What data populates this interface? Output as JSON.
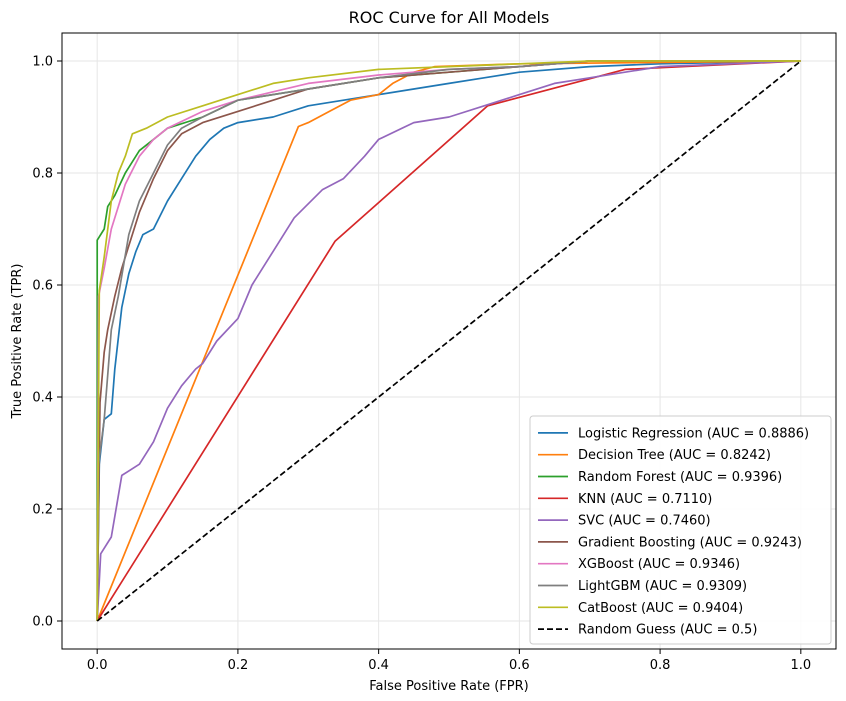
{
  "chart_data": {
    "type": "line",
    "title": "ROC Curve for All Models",
    "xlabel": "False Positive Rate (FPR)",
    "ylabel": "True Positive Rate (TPR)",
    "xlim": [
      -0.05,
      1.05
    ],
    "ylim": [
      -0.05,
      1.05
    ],
    "xticks": [
      "0.0",
      "0.2",
      "0.4",
      "0.6",
      "0.8",
      "1.0"
    ],
    "yticks": [
      "0.0",
      "0.2",
      "0.4",
      "0.6",
      "0.8",
      "1.0"
    ],
    "grid": true,
    "legend_position": "lower-right",
    "series": [
      {
        "name": "Logistic Regression (AUC = 0.8886)",
        "color": "#1f77b4",
        "dash": false,
        "points": [
          [
            0,
            0
          ],
          [
            0.003,
            0.28
          ],
          [
            0.01,
            0.36
          ],
          [
            0.02,
            0.37
          ],
          [
            0.025,
            0.45
          ],
          [
            0.035,
            0.56
          ],
          [
            0.045,
            0.62
          ],
          [
            0.055,
            0.66
          ],
          [
            0.065,
            0.69
          ],
          [
            0.08,
            0.7
          ],
          [
            0.1,
            0.75
          ],
          [
            0.12,
            0.79
          ],
          [
            0.14,
            0.83
          ],
          [
            0.16,
            0.86
          ],
          [
            0.18,
            0.88
          ],
          [
            0.2,
            0.89
          ],
          [
            0.25,
            0.9
          ],
          [
            0.3,
            0.92
          ],
          [
            0.35,
            0.93
          ],
          [
            0.4,
            0.94
          ],
          [
            0.45,
            0.95
          ],
          [
            0.5,
            0.96
          ],
          [
            0.55,
            0.97
          ],
          [
            0.6,
            0.98
          ],
          [
            0.7,
            0.99
          ],
          [
            0.8,
            0.995
          ],
          [
            1,
            1
          ]
        ]
      },
      {
        "name": "Decision Tree (AUC = 0.8242)",
        "color": "#ff7f0e",
        "dash": false,
        "points": [
          [
            0,
            0
          ],
          [
            0.286,
            0.883
          ],
          [
            0.3,
            0.89
          ],
          [
            0.33,
            0.91
          ],
          [
            0.36,
            0.93
          ],
          [
            0.4,
            0.94
          ],
          [
            0.42,
            0.96
          ],
          [
            0.45,
            0.98
          ],
          [
            0.48,
            0.99
          ],
          [
            0.6,
            0.995
          ],
          [
            1,
            1
          ]
        ]
      },
      {
        "name": "Random Forest (AUC = 0.9396)",
        "color": "#2ca02c",
        "dash": false,
        "points": [
          [
            0,
            0
          ],
          [
            0,
            0.6
          ],
          [
            0,
            0.68
          ],
          [
            0.01,
            0.7
          ],
          [
            0.015,
            0.74
          ],
          [
            0.025,
            0.76
          ],
          [
            0.04,
            0.8
          ],
          [
            0.06,
            0.84
          ],
          [
            0.08,
            0.86
          ],
          [
            0.1,
            0.88
          ],
          [
            0.15,
            0.9
          ],
          [
            0.2,
            0.93
          ],
          [
            0.3,
            0.95
          ],
          [
            0.4,
            0.97
          ],
          [
            0.5,
            0.98
          ],
          [
            0.6,
            0.99
          ],
          [
            0.7,
            1.0
          ],
          [
            1,
            1
          ]
        ]
      },
      {
        "name": "KNN (AUC = 0.7110)",
        "color": "#d62728",
        "dash": false,
        "points": [
          [
            0,
            0
          ],
          [
            0.338,
            0.678
          ],
          [
            0.555,
            0.92
          ],
          [
            0.75,
            0.985
          ],
          [
            1,
            1
          ]
        ]
      },
      {
        "name": "SVC (AUC = 0.7460)",
        "color": "#9467bd",
        "dash": false,
        "points": [
          [
            0,
            0
          ],
          [
            0.005,
            0.12
          ],
          [
            0.02,
            0.15
          ],
          [
            0.035,
            0.26
          ],
          [
            0.06,
            0.28
          ],
          [
            0.08,
            0.32
          ],
          [
            0.1,
            0.38
          ],
          [
            0.12,
            0.42
          ],
          [
            0.14,
            0.45
          ],
          [
            0.15,
            0.46
          ],
          [
            0.17,
            0.5
          ],
          [
            0.2,
            0.54
          ],
          [
            0.22,
            0.6
          ],
          [
            0.25,
            0.66
          ],
          [
            0.28,
            0.72
          ],
          [
            0.32,
            0.77
          ],
          [
            0.35,
            0.79
          ],
          [
            0.38,
            0.83
          ],
          [
            0.4,
            0.86
          ],
          [
            0.45,
            0.89
          ],
          [
            0.5,
            0.9
          ],
          [
            0.55,
            0.92
          ],
          [
            0.6,
            0.94
          ],
          [
            0.65,
            0.96
          ],
          [
            0.7,
            0.97
          ],
          [
            0.75,
            0.98
          ],
          [
            0.8,
            0.99
          ],
          [
            1,
            1
          ]
        ]
      },
      {
        "name": "Gradient Boosting (AUC = 0.9243)",
        "color": "#8c564b",
        "dash": false,
        "points": [
          [
            0,
            0
          ],
          [
            0.004,
            0.39
          ],
          [
            0.01,
            0.48
          ],
          [
            0.015,
            0.52
          ],
          [
            0.025,
            0.58
          ],
          [
            0.035,
            0.63
          ],
          [
            0.045,
            0.67
          ],
          [
            0.06,
            0.73
          ],
          [
            0.08,
            0.79
          ],
          [
            0.1,
            0.84
          ],
          [
            0.12,
            0.87
          ],
          [
            0.15,
            0.89
          ],
          [
            0.2,
            0.91
          ],
          [
            0.25,
            0.93
          ],
          [
            0.3,
            0.95
          ],
          [
            0.4,
            0.97
          ],
          [
            0.5,
            0.98
          ],
          [
            0.6,
            0.99
          ],
          [
            0.7,
            1.0
          ],
          [
            1,
            1
          ]
        ]
      },
      {
        "name": "XGBoost (AUC = 0.9346)",
        "color": "#e377c2",
        "dash": false,
        "points": [
          [
            0,
            0
          ],
          [
            0.002,
            0.58
          ],
          [
            0.01,
            0.63
          ],
          [
            0.02,
            0.7
          ],
          [
            0.03,
            0.74
          ],
          [
            0.04,
            0.78
          ],
          [
            0.06,
            0.83
          ],
          [
            0.08,
            0.86
          ],
          [
            0.1,
            0.88
          ],
          [
            0.15,
            0.91
          ],
          [
            0.2,
            0.93
          ],
          [
            0.3,
            0.96
          ],
          [
            0.4,
            0.975
          ],
          [
            0.5,
            0.985
          ],
          [
            0.6,
            0.99
          ],
          [
            0.7,
            1.0
          ],
          [
            1,
            1
          ]
        ]
      },
      {
        "name": "LightGBM (AUC = 0.9309)",
        "color": "#7f7f7f",
        "dash": false,
        "points": [
          [
            0,
            0
          ],
          [
            0.002,
            0.28
          ],
          [
            0.01,
            0.36
          ],
          [
            0.02,
            0.52
          ],
          [
            0.03,
            0.58
          ],
          [
            0.045,
            0.69
          ],
          [
            0.06,
            0.75
          ],
          [
            0.08,
            0.8
          ],
          [
            0.1,
            0.85
          ],
          [
            0.12,
            0.88
          ],
          [
            0.15,
            0.9
          ],
          [
            0.2,
            0.93
          ],
          [
            0.3,
            0.95
          ],
          [
            0.4,
            0.97
          ],
          [
            0.5,
            0.985
          ],
          [
            0.6,
            0.99
          ],
          [
            0.7,
            1.0
          ],
          [
            1,
            1
          ]
        ]
      },
      {
        "name": "CatBoost (AUC = 0.9404)",
        "color": "#bcbd22",
        "dash": false,
        "points": [
          [
            0,
            0
          ],
          [
            0.003,
            0.59
          ],
          [
            0.01,
            0.65
          ],
          [
            0.02,
            0.75
          ],
          [
            0.03,
            0.8
          ],
          [
            0.04,
            0.83
          ],
          [
            0.05,
            0.87
          ],
          [
            0.07,
            0.88
          ],
          [
            0.1,
            0.9
          ],
          [
            0.15,
            0.92
          ],
          [
            0.2,
            0.94
          ],
          [
            0.25,
            0.96
          ],
          [
            0.3,
            0.97
          ],
          [
            0.4,
            0.985
          ],
          [
            0.5,
            0.99
          ],
          [
            0.6,
            0.995
          ],
          [
            0.7,
            1.0
          ],
          [
            1,
            1
          ]
        ]
      },
      {
        "name": "Random Guess (AUC = 0.5)",
        "color": "#000000",
        "dash": true,
        "points": [
          [
            0,
            0
          ],
          [
            1,
            1
          ]
        ]
      }
    ]
  }
}
